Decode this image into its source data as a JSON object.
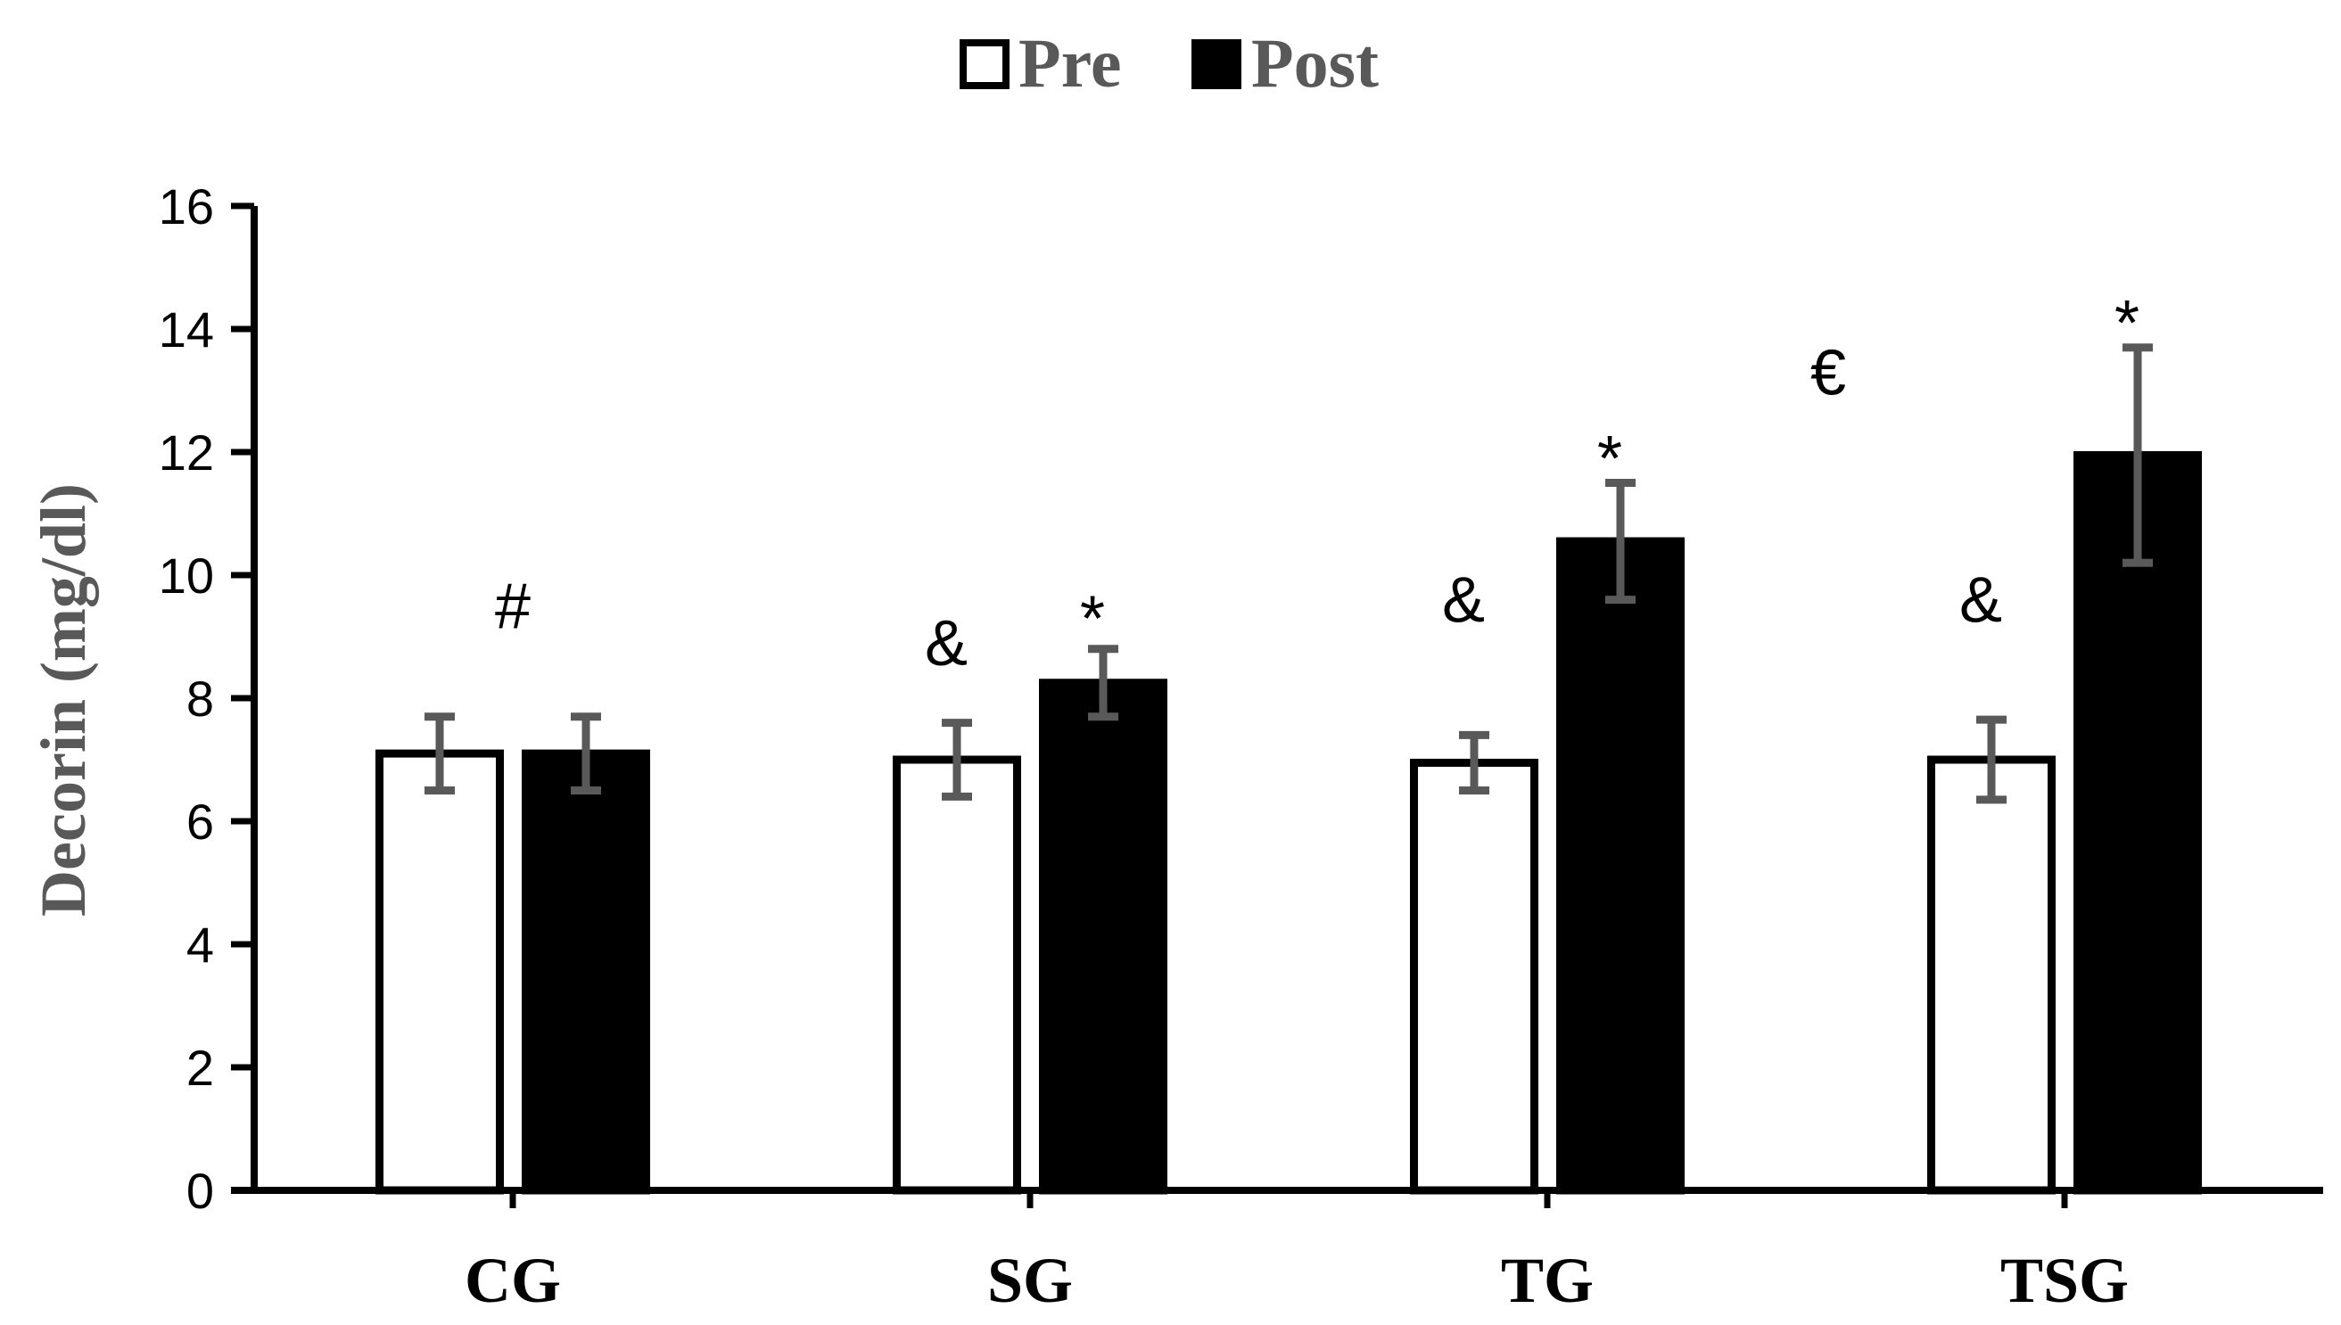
{
  "chart_data": {
    "type": "bar",
    "title": "",
    "xlabel": "",
    "ylabel": "Decorin (mg/dl)",
    "ylim": [
      0,
      16
    ],
    "yticks": [
      "0",
      "2",
      "4",
      "6",
      "8",
      "10",
      "12",
      "14",
      "16"
    ],
    "grid": false,
    "legend_position": "top-center",
    "categories": [
      "CG",
      "SG",
      "TG",
      "TSG"
    ],
    "series": [
      {
        "name": "Pre",
        "fill": "#ffffff",
        "stroke": "#000000",
        "values": [
          7.1,
          7.0,
          6.95,
          7.0
        ],
        "errors": [
          0.6,
          0.6,
          0.45,
          0.65
        ]
      },
      {
        "name": "Post",
        "fill": "#000000",
        "stroke": "#000000",
        "values": [
          7.1,
          8.25,
          10.55,
          11.95
        ],
        "errors": [
          0.6,
          0.55,
          0.95,
          1.75
        ]
      }
    ],
    "error_bar_color": "#595959",
    "annotations": [
      {
        "text": "#",
        "category": "CG",
        "position": "between",
        "y": 9.5
      },
      {
        "text": "&",
        "category": "SG",
        "series": "Pre",
        "y": 8.9
      },
      {
        "text": "*",
        "category": "SG",
        "series": "Post",
        "y": 9.3
      },
      {
        "text": "&",
        "category": "TG",
        "series": "Pre",
        "y": 9.6
      },
      {
        "text": "*",
        "category": "TG",
        "series": "Post",
        "y": 11.9
      },
      {
        "text": "€",
        "category": "TSG",
        "position": "left",
        "y": 13.3
      },
      {
        "text": "&",
        "category": "TSG",
        "series": "Pre",
        "y": 9.6
      },
      {
        "text": "*",
        "category": "TSG",
        "series": "Post",
        "y": 14.1
      }
    ]
  }
}
